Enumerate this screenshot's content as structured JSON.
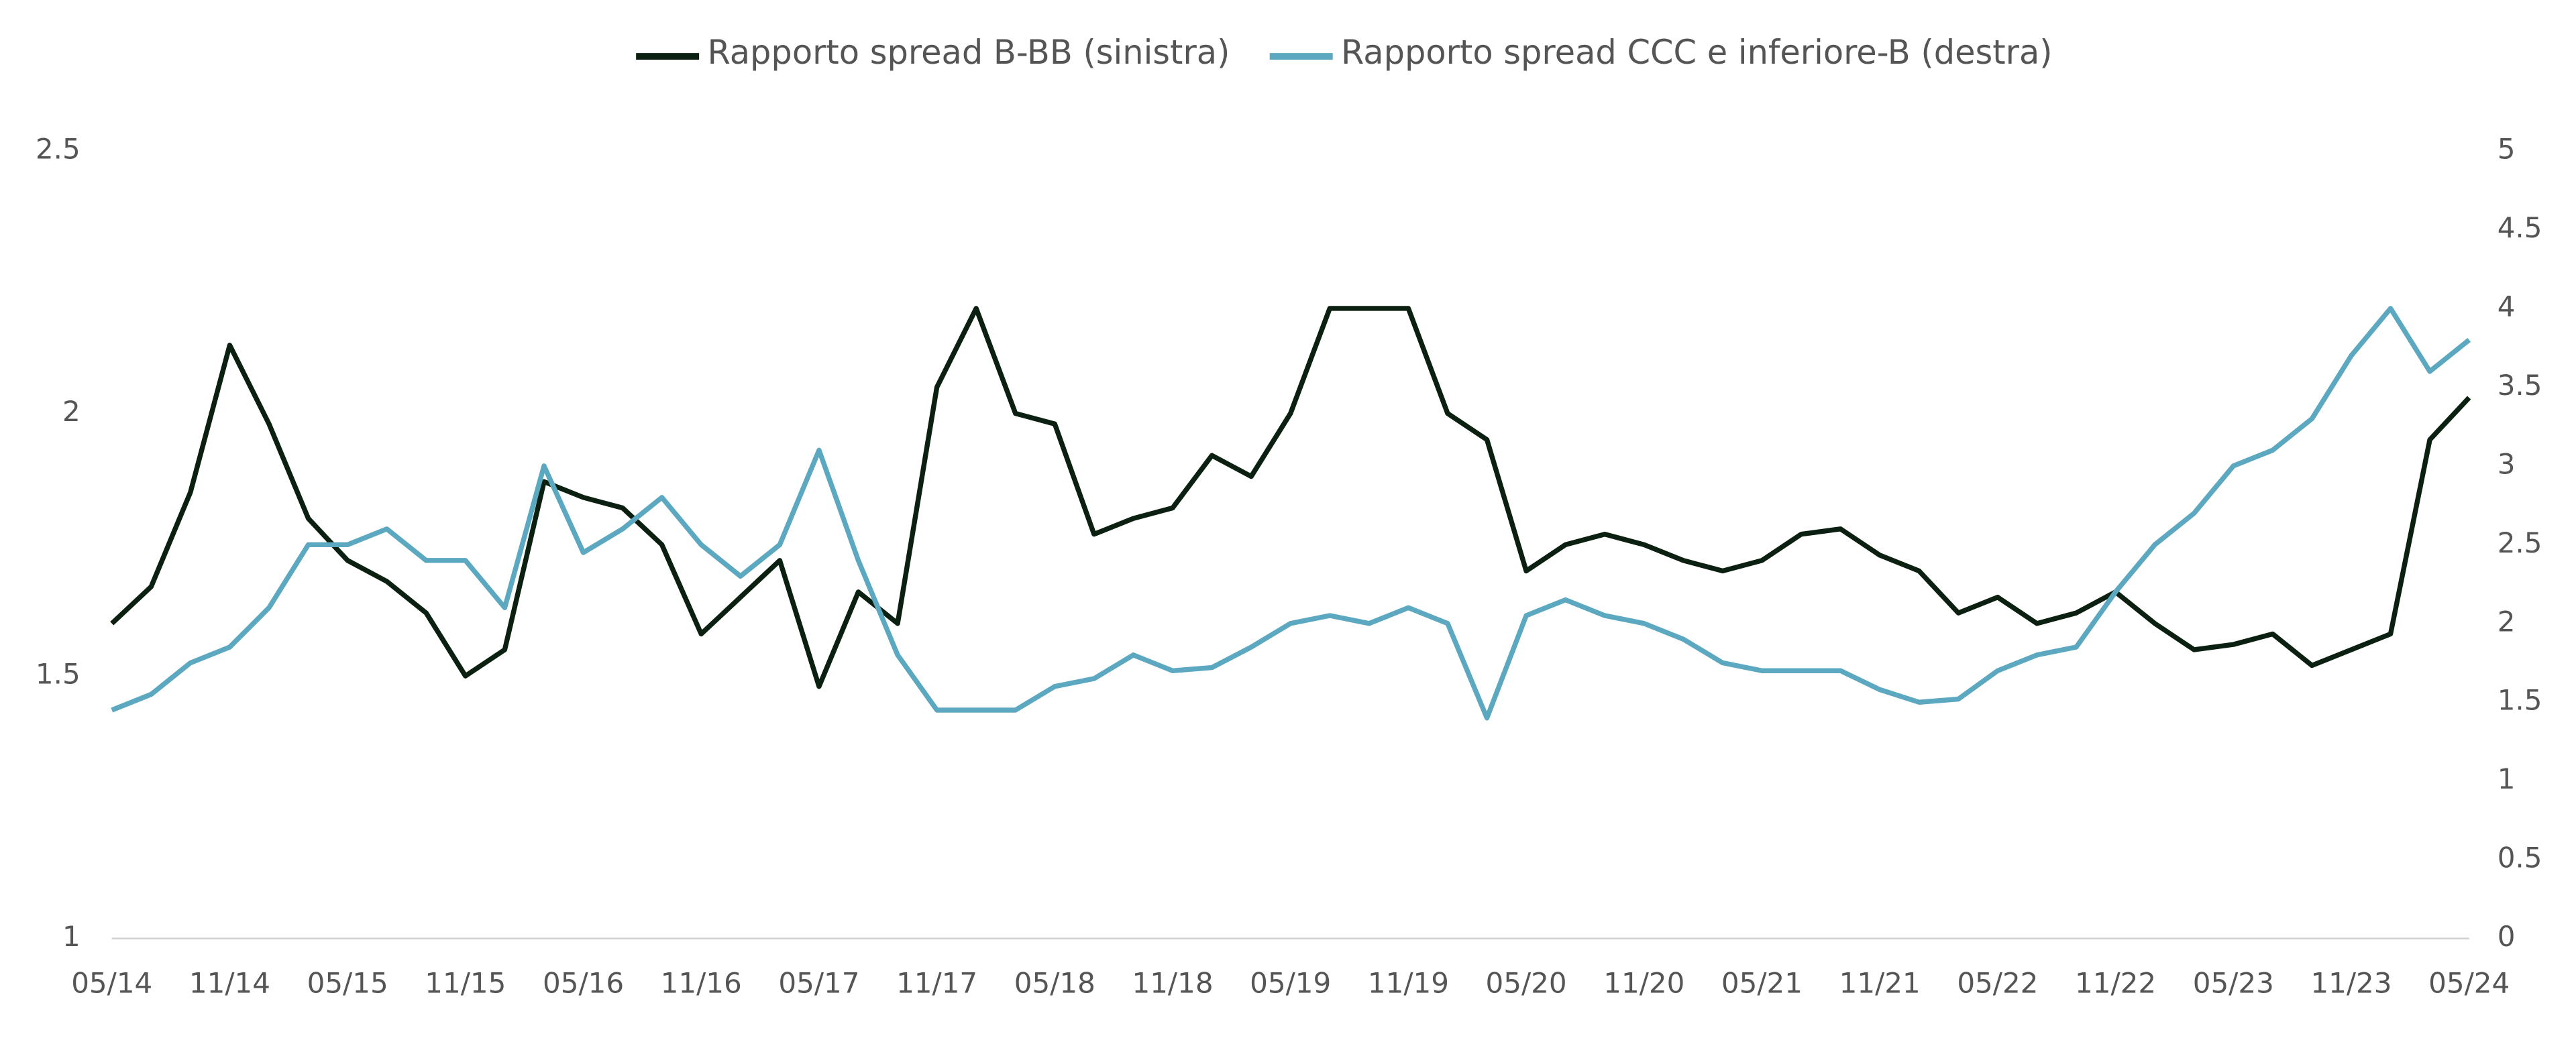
{
  "chart_data": {
    "type": "line",
    "x": [
      "05/14",
      "07/14",
      "09/14",
      "11/14",
      "01/15",
      "03/15",
      "05/15",
      "07/15",
      "09/15",
      "11/15",
      "01/16",
      "03/16",
      "05/16",
      "07/16",
      "09/16",
      "11/16",
      "01/17",
      "03/17",
      "05/17",
      "07/17",
      "09/17",
      "11/17",
      "01/18",
      "03/18",
      "05/18",
      "07/18",
      "09/18",
      "11/18",
      "01/19",
      "03/19",
      "05/19",
      "07/19",
      "09/19",
      "11/19",
      "01/20",
      "03/20",
      "05/20",
      "07/20",
      "09/20",
      "11/20",
      "01/21",
      "03/21",
      "05/21",
      "07/21",
      "09/21",
      "11/21",
      "01/22",
      "03/22",
      "05/22",
      "07/22",
      "09/22",
      "11/22",
      "01/23",
      "03/23",
      "05/23",
      "07/23",
      "09/23",
      "11/23",
      "01/24",
      "03/24",
      "05/24"
    ],
    "series": [
      {
        "name": "Rapporto spread B-BB (sinistra)",
        "color": "#0b2010",
        "axis": "y",
        "values": [
          1.6,
          1.67,
          1.85,
          2.13,
          1.98,
          1.8,
          1.72,
          1.68,
          1.62,
          1.5,
          1.55,
          1.87,
          1.84,
          1.82,
          1.75,
          1.58,
          1.65,
          1.72,
          1.48,
          1.66,
          1.6,
          2.05,
          2.2,
          2.0,
          1.98,
          1.77,
          1.8,
          1.82,
          1.92,
          1.88,
          2.0,
          2.2,
          2.2,
          2.2,
          2.0,
          1.95,
          1.7,
          1.75,
          1.77,
          1.75,
          1.72,
          1.7,
          1.72,
          1.77,
          1.78,
          1.73,
          1.7,
          1.62,
          1.65,
          1.6,
          1.62,
          1.66,
          1.6,
          1.55,
          1.56,
          1.58,
          1.52,
          1.55,
          1.58,
          1.95,
          2.03
        ]
      },
      {
        "name": "Rapporto spread CCC e inferiore-B (destra)",
        "color": "#5ba8c0",
        "axis": "y2",
        "values": [
          1.45,
          1.55,
          1.75,
          1.85,
          2.1,
          2.5,
          2.5,
          2.6,
          2.4,
          2.4,
          2.1,
          3.0,
          2.45,
          2.6,
          2.8,
          2.5,
          2.3,
          2.5,
          3.1,
          2.4,
          1.8,
          1.45,
          1.45,
          1.45,
          1.6,
          1.65,
          1.8,
          1.7,
          1.72,
          1.85,
          2.0,
          2.05,
          2.0,
          2.1,
          2.0,
          1.4,
          2.05,
          2.15,
          2.05,
          2.0,
          1.9,
          1.75,
          1.7,
          1.7,
          1.7,
          1.58,
          1.5,
          1.52,
          1.7,
          1.8,
          1.85,
          2.2,
          2.5,
          2.7,
          3.0,
          3.1,
          3.3,
          3.7,
          4.0,
          3.6,
          3.8
        ]
      }
    ],
    "xticks": [
      "05/14",
      "11/14",
      "05/15",
      "11/15",
      "05/16",
      "11/16",
      "05/17",
      "11/17",
      "05/18",
      "11/18",
      "05/19",
      "11/19",
      "05/20",
      "11/20",
      "05/21",
      "11/21",
      "05/22",
      "11/22",
      "05/23",
      "11/23",
      "05/24"
    ],
    "ylim": [
      1,
      2.5
    ],
    "yticks": [
      1,
      1.5,
      2,
      2.5
    ],
    "y2lim": [
      0,
      5
    ],
    "y2ticks": [
      0,
      0.5,
      1,
      1.5,
      2,
      2.5,
      3,
      3.5,
      4,
      4.5,
      5
    ],
    "legend": "top",
    "grid": false
  }
}
